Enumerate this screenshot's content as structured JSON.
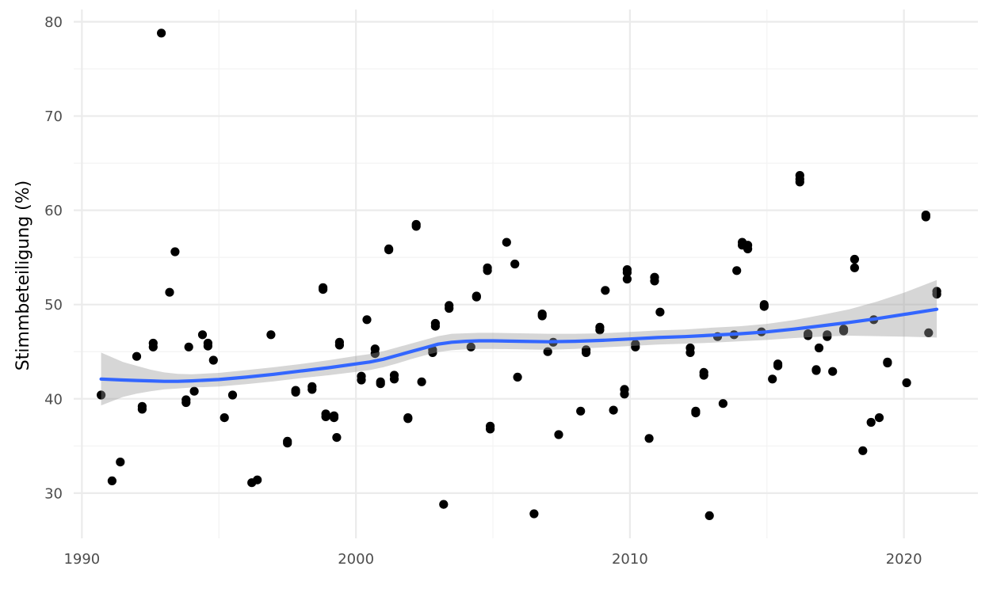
{
  "chart_data": {
    "type": "scatter",
    "title": "",
    "xlabel": "",
    "ylabel": "Stimmbeteiligung (%)",
    "xlim": [
      1989.7,
      2022.7
    ],
    "ylim": [
      25.2,
      81.3
    ],
    "x_ticks": [
      1990,
      2000,
      2010,
      2020
    ],
    "y_ticks": [
      30,
      40,
      50,
      60,
      70,
      80
    ],
    "x_tick_labels": [
      "1990",
      "2000",
      "2010",
      "2020"
    ],
    "y_tick_labels": [
      "30",
      "40",
      "50",
      "60",
      "70",
      "80"
    ],
    "grid": true,
    "legend": "none",
    "colors": {
      "points": "#000000",
      "smooth_line": "#3366ff",
      "confidence_band": "#d9d9d9",
      "grid_major": "#ebebeb",
      "grid_minor": "#f3f3f3",
      "tick_text": "#4d4d4d"
    },
    "points": [
      [
        1990.7,
        40.4
      ],
      [
        1991.1,
        31.3
      ],
      [
        1991.4,
        33.3
      ],
      [
        1992.0,
        44.5
      ],
      [
        1992.2,
        39.2
      ],
      [
        1992.2,
        38.9
      ],
      [
        1992.6,
        45.9
      ],
      [
        1992.6,
        45.5
      ],
      [
        1992.9,
        78.8
      ],
      [
        1993.2,
        51.3
      ],
      [
        1993.4,
        55.6
      ],
      [
        1993.8,
        39.9
      ],
      [
        1993.8,
        39.6
      ],
      [
        1993.9,
        45.5
      ],
      [
        1994.1,
        40.8
      ],
      [
        1994.4,
        46.8
      ],
      [
        1994.6,
        45.9
      ],
      [
        1994.6,
        45.6
      ],
      [
        1994.8,
        44.1
      ],
      [
        1995.2,
        38.0
      ],
      [
        1995.5,
        40.4
      ],
      [
        1996.2,
        31.1
      ],
      [
        1996.4,
        31.4
      ],
      [
        1996.9,
        46.8
      ],
      [
        1997.5,
        35.5
      ],
      [
        1997.5,
        35.3
      ],
      [
        1997.8,
        40.9
      ],
      [
        1997.8,
        40.7
      ],
      [
        1998.4,
        41.3
      ],
      [
        1998.4,
        41.0
      ],
      [
        1998.8,
        51.8
      ],
      [
        1998.8,
        51.6
      ],
      [
        1998.9,
        38.4
      ],
      [
        1998.9,
        38.1
      ],
      [
        1999.2,
        38.2
      ],
      [
        1999.2,
        38.0
      ],
      [
        1999.3,
        35.9
      ],
      [
        1999.4,
        46.0
      ],
      [
        1999.4,
        45.7
      ],
      [
        2000.2,
        42.4
      ],
      [
        2000.2,
        42.0
      ],
      [
        2000.4,
        48.4
      ],
      [
        2000.7,
        45.3
      ],
      [
        2000.7,
        44.8
      ],
      [
        2000.9,
        41.8
      ],
      [
        2000.9,
        41.6
      ],
      [
        2001.2,
        55.9
      ],
      [
        2001.2,
        55.8
      ],
      [
        2001.4,
        42.5
      ],
      [
        2001.4,
        42.1
      ],
      [
        2001.9,
        38.0
      ],
      [
        2001.9,
        37.9
      ],
      [
        2002.2,
        58.5
      ],
      [
        2002.2,
        58.3
      ],
      [
        2002.4,
        41.8
      ],
      [
        2002.8,
        45.2
      ],
      [
        2002.8,
        44.9
      ],
      [
        2002.9,
        48.0
      ],
      [
        2002.9,
        47.7
      ],
      [
        2003.2,
        28.8
      ],
      [
        2003.4,
        49.9
      ],
      [
        2003.4,
        49.6
      ],
      [
        2004.2,
        45.5
      ],
      [
        2004.4,
        50.9
      ],
      [
        2004.4,
        50.8
      ],
      [
        2004.8,
        53.9
      ],
      [
        2004.8,
        53.6
      ],
      [
        2004.9,
        37.1
      ],
      [
        2004.9,
        36.8
      ],
      [
        2005.5,
        56.6
      ],
      [
        2005.8,
        54.3
      ],
      [
        2005.9,
        42.3
      ],
      [
        2006.5,
        27.8
      ],
      [
        2006.8,
        49.0
      ],
      [
        2006.8,
        48.8
      ],
      [
        2007.0,
        45.0
      ],
      [
        2007.2,
        46.0
      ],
      [
        2007.4,
        36.2
      ],
      [
        2008.2,
        38.7
      ],
      [
        2008.4,
        45.2
      ],
      [
        2008.4,
        44.9
      ],
      [
        2008.9,
        47.6
      ],
      [
        2008.9,
        47.3
      ],
      [
        2009.1,
        51.5
      ],
      [
        2009.4,
        38.8
      ],
      [
        2009.8,
        41.0
      ],
      [
        2009.8,
        40.5
      ],
      [
        2009.9,
        53.7
      ],
      [
        2009.9,
        53.4
      ],
      [
        2009.9,
        52.7
      ],
      [
        2010.2,
        45.8
      ],
      [
        2010.2,
        45.5
      ],
      [
        2010.7,
        35.8
      ],
      [
        2010.9,
        52.9
      ],
      [
        2010.9,
        52.5
      ],
      [
        2011.1,
        49.2
      ],
      [
        2012.2,
        45.4
      ],
      [
        2012.2,
        44.9
      ],
      [
        2012.4,
        38.7
      ],
      [
        2012.4,
        38.5
      ],
      [
        2012.7,
        42.8
      ],
      [
        2012.7,
        42.5
      ],
      [
        2012.9,
        27.6
      ],
      [
        2013.2,
        46.6
      ],
      [
        2013.4,
        39.5
      ],
      [
        2013.8,
        46.8
      ],
      [
        2013.9,
        53.6
      ],
      [
        2014.1,
        56.6
      ],
      [
        2014.1,
        56.3
      ],
      [
        2014.3,
        56.3
      ],
      [
        2014.3,
        55.9
      ],
      [
        2014.8,
        47.1
      ],
      [
        2014.9,
        50.0
      ],
      [
        2014.9,
        49.8
      ],
      [
        2015.2,
        42.1
      ],
      [
        2015.4,
        43.7
      ],
      [
        2015.4,
        43.5
      ],
      [
        2016.2,
        63.7
      ],
      [
        2016.2,
        63.3
      ],
      [
        2016.2,
        63.0
      ],
      [
        2016.5,
        46.9
      ],
      [
        2016.5,
        46.7
      ],
      [
        2016.8,
        43.1
      ],
      [
        2016.8,
        43.0
      ],
      [
        2016.9,
        45.4
      ],
      [
        2017.2,
        46.8
      ],
      [
        2017.2,
        46.6
      ],
      [
        2017.4,
        42.9
      ],
      [
        2017.8,
        47.4
      ],
      [
        2017.8,
        47.2
      ],
      [
        2018.2,
        54.8
      ],
      [
        2018.2,
        53.9
      ],
      [
        2018.5,
        34.5
      ],
      [
        2018.8,
        37.5
      ],
      [
        2018.9,
        48.4
      ],
      [
        2019.1,
        38.0
      ],
      [
        2019.4,
        43.9
      ],
      [
        2019.4,
        43.8
      ],
      [
        2020.1,
        41.7
      ],
      [
        2020.8,
        59.5
      ],
      [
        2020.8,
        59.3
      ],
      [
        2020.9,
        47.0
      ],
      [
        2021.2,
        51.4
      ],
      [
        2021.2,
        51.1
      ]
    ],
    "smooth_curve": {
      "x": [
        1990.7,
        1991.5,
        1992.0,
        1992.5,
        1993.0,
        1993.5,
        1994.0,
        1995.0,
        1996.0,
        1997.0,
        1998.0,
        1999.0,
        2000.0,
        2000.5,
        2001.0,
        2001.5,
        2002.0,
        2002.5,
        2003.0,
        2003.5,
        2004.0,
        2004.5,
        2005.0,
        2006.0,
        2007.0,
        2008.0,
        2009.0,
        2010.0,
        2011.0,
        2012.0,
        2013.0,
        2014.0,
        2015.0,
        2016.0,
        2017.0,
        2018.0,
        2019.0,
        2020.0,
        2021.2
      ],
      "y": [
        42.1,
        42.0,
        41.95,
        41.9,
        41.85,
        41.85,
        41.9,
        42.05,
        42.3,
        42.6,
        42.95,
        43.3,
        43.7,
        43.9,
        44.2,
        44.6,
        45.0,
        45.4,
        45.8,
        46.0,
        46.1,
        46.15,
        46.15,
        46.1,
        46.05,
        46.1,
        46.2,
        46.35,
        46.5,
        46.6,
        46.75,
        46.9,
        47.1,
        47.4,
        47.75,
        48.1,
        48.5,
        48.95,
        49.5
      ]
    },
    "confidence_band": {
      "x": [
        1990.7,
        1991.5,
        1992.0,
        1992.5,
        1993.0,
        1993.5,
        1994.0,
        1995.0,
        1996.0,
        1997.0,
        1998.0,
        1999.0,
        2000.0,
        2000.5,
        2001.0,
        2001.5,
        2002.0,
        2002.5,
        2003.0,
        2003.5,
        2004.0,
        2004.5,
        2005.0,
        2006.0,
        2007.0,
        2008.0,
        2009.0,
        2010.0,
        2011.0,
        2012.0,
        2013.0,
        2014.0,
        2015.0,
        2016.0,
        2017.0,
        2018.0,
        2019.0,
        2020.0,
        2021.2
      ],
      "lower": [
        39.3,
        40.2,
        40.55,
        40.8,
        41.0,
        41.1,
        41.2,
        41.3,
        41.55,
        41.85,
        42.2,
        42.5,
        42.85,
        43.05,
        43.35,
        43.75,
        44.2,
        44.6,
        44.95,
        45.15,
        45.25,
        45.3,
        45.3,
        45.25,
        45.2,
        45.3,
        45.45,
        45.6,
        45.75,
        45.85,
        45.95,
        46.1,
        46.25,
        46.45,
        46.6,
        46.7,
        46.65,
        46.6,
        46.5
      ],
      "upper": [
        44.9,
        43.9,
        43.5,
        43.1,
        42.8,
        42.65,
        42.6,
        42.75,
        43.05,
        43.35,
        43.7,
        44.1,
        44.55,
        44.75,
        45.05,
        45.45,
        45.85,
        46.25,
        46.65,
        46.9,
        46.95,
        47.0,
        47.0,
        46.95,
        46.9,
        46.9,
        46.95,
        47.1,
        47.25,
        47.35,
        47.55,
        47.7,
        47.95,
        48.35,
        48.9,
        49.5,
        50.3,
        51.25,
        52.6
      ]
    }
  }
}
